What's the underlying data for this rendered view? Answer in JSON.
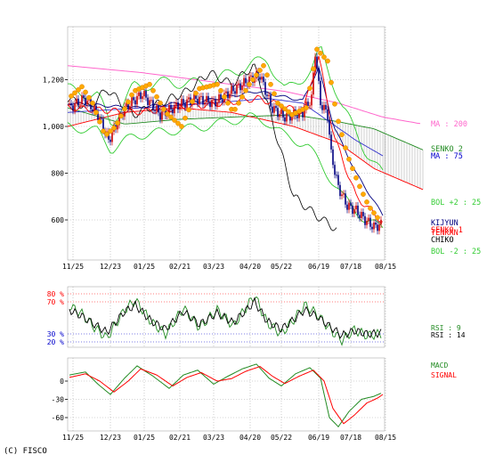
{
  "copyright": "(C) FISCO",
  "chart_data": [
    {
      "type": "line",
      "panel": "price",
      "x_ticks": [
        "11/25",
        "12/23",
        "01/25",
        "02/21",
        "03/23",
        "04/20",
        "05/22",
        "06/19",
        "07/18",
        "08/15"
      ],
      "y_ticks": [
        "1,200",
        "1,000",
        "800",
        "600"
      ],
      "ylim": [
        480,
        1420
      ],
      "grid": true,
      "legend": [
        {
          "label": "MA : 200",
          "color": "#ff66cc"
        },
        {
          "label": "SENKO 2",
          "color": "#228b22"
        },
        {
          "label": "MA : 75",
          "color": "#0000cc"
        },
        {
          "label": "BOL +2 : 25",
          "color": "#33cc33"
        },
        {
          "label": "KIJYUN",
          "color": "#000080"
        },
        {
          "label": "SENKO 1",
          "color": "#ff0000"
        },
        {
          "label": "TENKAN",
          "color": "#ff0000"
        },
        {
          "label": "CHIKO",
          "color": "#000000"
        },
        {
          "label": "BOL -2 : 25",
          "color": "#33cc33"
        }
      ]
    },
    {
      "type": "line",
      "panel": "rsi",
      "y_ticks": [
        "80 %",
        "70 %",
        "30 %",
        "20 %"
      ],
      "ylim": [
        0,
        100
      ],
      "legend": [
        {
          "label": "RSI : 9",
          "color": "#228b22"
        },
        {
          "label": "RSI : 14",
          "color": "#000000"
        }
      ]
    },
    {
      "type": "line",
      "panel": "macd",
      "y_ticks": [
        "0",
        "-30",
        "-60"
      ],
      "ylim": [
        -80,
        35
      ],
      "legend": [
        {
          "label": "MACD",
          "color": "#228b22"
        },
        {
          "label": "SIGNAL",
          "color": "#ff0000"
        }
      ]
    }
  ]
}
